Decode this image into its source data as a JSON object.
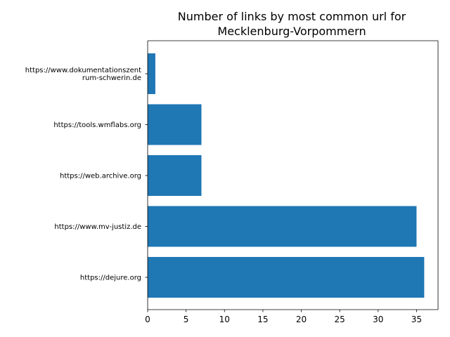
{
  "chart_data": {
    "type": "bar",
    "orientation": "horizontal",
    "title_lines": [
      "Number of links by most common url for",
      "Mecklenburg-Vorpommern"
    ],
    "categories": [
      [
        "https://dejure.org"
      ],
      [
        "https://www.mv-justiz.de"
      ],
      [
        "https://web.archive.org"
      ],
      [
        "https://tools.wmflabs.org"
      ],
      [
        "https://www.dokumentationszent",
        "rum-schwerin.de"
      ]
    ],
    "values": [
      36,
      35,
      7,
      7,
      1
    ],
    "xlim": [
      0,
      37.8
    ],
    "xticks": [
      0,
      5,
      10,
      15,
      20,
      25,
      30,
      35
    ],
    "bar_color": "#1f77b4",
    "grid": false,
    "xlabel": "",
    "ylabel": ""
  }
}
